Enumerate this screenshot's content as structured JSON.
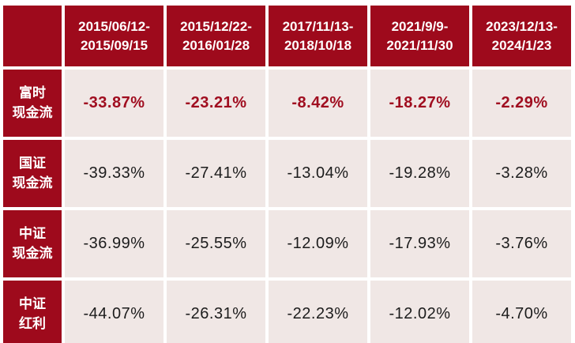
{
  "colors": {
    "header_bg": "#9e0a1c",
    "cell_bg": "#f0e7e5",
    "highlight_text": "#a00e20",
    "normal_text": "#1c1c1c",
    "header_text": "#ffffff",
    "grid_gap": "#ffffff"
  },
  "table": {
    "headers": [
      {
        "line1": "2015/06/12-",
        "line2": "2015/09/15"
      },
      {
        "line1": "2015/12/22-",
        "line2": "2016/01/28"
      },
      {
        "line1": "2017/11/13-",
        "line2": "2018/10/18"
      },
      {
        "line1": "2021/9/9-",
        "line2": "2021/11/30"
      },
      {
        "line1": "2023/12/13-",
        "line2": "2024/1/23"
      }
    ],
    "rows": [
      {
        "label1": "富时",
        "label2": "现金流",
        "highlight": true,
        "values": [
          "-33.87%",
          "-23.21%",
          "-8.42%",
          "-18.27%",
          "-2.29%"
        ]
      },
      {
        "label1": "国证",
        "label2": "现金流",
        "highlight": false,
        "values": [
          "-39.33%",
          "-27.41%",
          "-13.04%",
          "-19.28%",
          "-3.28%"
        ]
      },
      {
        "label1": "中证",
        "label2": "现金流",
        "highlight": false,
        "values": [
          "-36.99%",
          "-25.55%",
          "-12.09%",
          "-17.93%",
          "-3.76%"
        ]
      },
      {
        "label1": "中证",
        "label2": "红利",
        "highlight": false,
        "values": [
          "-44.07%",
          "-26.31%",
          "-22.23%",
          "-12.02%",
          "-4.70%"
        ]
      }
    ]
  },
  "chart_data": {
    "type": "table",
    "title": "",
    "columns": [
      "",
      "2015/06/12-2015/09/15",
      "2015/12/22-2016/01/28",
      "2017/11/13-2018/10/18",
      "2021/9/9-2021/11/30",
      "2023/12/13-2024/1/23"
    ],
    "rows": [
      [
        "富时现金流",
        -33.87,
        -23.21,
        -8.42,
        -18.27,
        -2.29
      ],
      [
        "国证现金流",
        -39.33,
        -27.41,
        -13.04,
        -19.28,
        -3.28
      ],
      [
        "中证现金流",
        -36.99,
        -25.55,
        -12.09,
        -17.93,
        -3.76
      ],
      [
        "中证红利",
        -44.07,
        -26.31,
        -22.23,
        -12.02,
        -4.7
      ]
    ],
    "units": "percent",
    "note_highlight_row": "富时现金流"
  }
}
